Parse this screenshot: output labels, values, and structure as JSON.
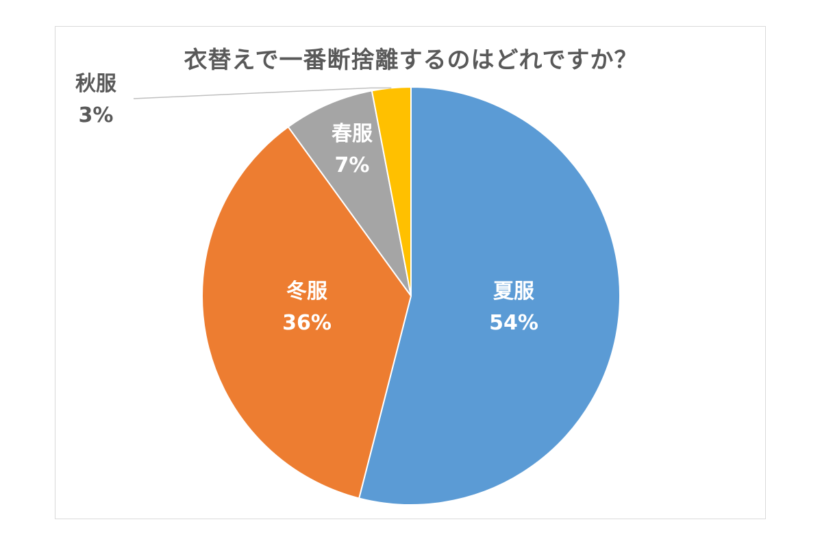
{
  "chart_data": {
    "type": "pie",
    "title": "衣替えで一番断捨離するのはどれですか？",
    "slices": [
      {
        "label": "夏服",
        "percent_label": "54%",
        "value": 54,
        "color": "#5b9bd5",
        "label_color": "#ffffff"
      },
      {
        "label": "冬服",
        "percent_label": "36%",
        "value": 36,
        "color": "#ed7d31",
        "label_color": "#ffffff"
      },
      {
        "label": "春服",
        "percent_label": "7%",
        "value": 7,
        "color": "#a5a5a5",
        "label_color": "#ffffff"
      },
      {
        "label": "秋服",
        "percent_label": "3%",
        "value": 3,
        "color": "#ffc000",
        "label_color": "#595959"
      }
    ],
    "start_angle": "12 o'clock",
    "direction": "clockwise",
    "legend": "none"
  }
}
